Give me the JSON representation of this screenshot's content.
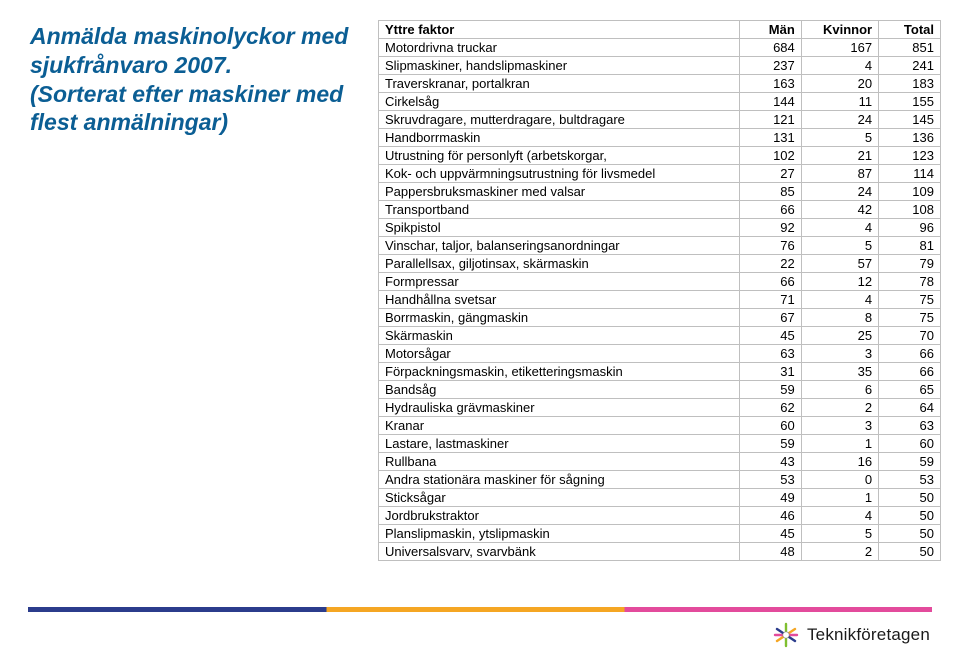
{
  "title": {
    "line1": "Anmälda maskinolyckor med sjukfrånvaro 2007.",
    "line2": "(Sorterat efter maskiner med flest anmälningar)"
  },
  "table": {
    "headers": {
      "factor": "Yttre faktor",
      "men": "Män",
      "women": "Kvinnor",
      "total": "Total"
    },
    "rows": [
      {
        "factor": "Motordrivna truckar",
        "men": 684,
        "women": 167,
        "total": 851
      },
      {
        "factor": "Slipmaskiner, handslipmaskiner",
        "men": 237,
        "women": 4,
        "total": 241
      },
      {
        "factor": "Traverskranar, portalkran",
        "men": 163,
        "women": 20,
        "total": 183
      },
      {
        "factor": "Cirkelsåg",
        "men": 144,
        "women": 11,
        "total": 155
      },
      {
        "factor": "Skruvdragare, mutterdragare, bultdragare",
        "men": 121,
        "women": 24,
        "total": 145
      },
      {
        "factor": "Handborrmaskin",
        "men": 131,
        "women": 5,
        "total": 136
      },
      {
        "factor": "Utrustning för personlyft (arbetskorgar,",
        "men": 102,
        "women": 21,
        "total": 123
      },
      {
        "factor": "Kok- och uppvärmningsutrustning för livsmedel",
        "men": 27,
        "women": 87,
        "total": 114
      },
      {
        "factor": "Pappersbruksmaskiner med valsar",
        "men": 85,
        "women": 24,
        "total": 109
      },
      {
        "factor": "Transportband",
        "men": 66,
        "women": 42,
        "total": 108
      },
      {
        "factor": "Spikpistol",
        "men": 92,
        "women": 4,
        "total": 96
      },
      {
        "factor": "Vinschar, taljor, balanseringsanordningar",
        "men": 76,
        "women": 5,
        "total": 81
      },
      {
        "factor": "Parallellsax, giljotinsax, skärmaskin",
        "men": 22,
        "women": 57,
        "total": 79
      },
      {
        "factor": "Formpressar",
        "men": 66,
        "women": 12,
        "total": 78
      },
      {
        "factor": "Handhållna svetsar",
        "men": 71,
        "women": 4,
        "total": 75
      },
      {
        "factor": "Borrmaskin, gängmaskin",
        "men": 67,
        "women": 8,
        "total": 75
      },
      {
        "factor": "Skärmaskin",
        "men": 45,
        "women": 25,
        "total": 70
      },
      {
        "factor": "Motorsågar",
        "men": 63,
        "women": 3,
        "total": 66
      },
      {
        "factor": "Förpackningsmaskin, etiketteringsmaskin",
        "men": 31,
        "women": 35,
        "total": 66
      },
      {
        "factor": "Bandsåg",
        "men": 59,
        "women": 6,
        "total": 65
      },
      {
        "factor": "Hydrauliska grävmaskiner",
        "men": 62,
        "women": 2,
        "total": 64
      },
      {
        "factor": "Kranar",
        "men": 60,
        "women": 3,
        "total": 63
      },
      {
        "factor": "Lastare, lastmaskiner",
        "men": 59,
        "women": 1,
        "total": 60
      },
      {
        "factor": "Rullbana",
        "men": 43,
        "women": 16,
        "total": 59
      },
      {
        "factor": "Andra stationära maskiner för sågning",
        "men": 53,
        "women": 0,
        "total": 53
      },
      {
        "factor": "Sticksågar",
        "men": 49,
        "women": 1,
        "total": 50
      },
      {
        "factor": "Jordbrukstraktor",
        "men": 46,
        "women": 4,
        "total": 50
      },
      {
        "factor": "Planslipmaskin, ytslipmaskin",
        "men": 45,
        "women": 5,
        "total": 50
      },
      {
        "factor": "Universalsvarv, svarvbänk",
        "men": 48,
        "women": 2,
        "total": 50
      }
    ]
  },
  "footer": {
    "brand": "Teknikföretagen",
    "bar_colors": [
      "#2b3c8c",
      "#f5a623",
      "#e34b9c"
    ],
    "logo_colors": {
      "green": "#7fbf2f",
      "orange": "#f5a623",
      "pink": "#e34b9c",
      "blue": "#2b3c8c"
    }
  }
}
